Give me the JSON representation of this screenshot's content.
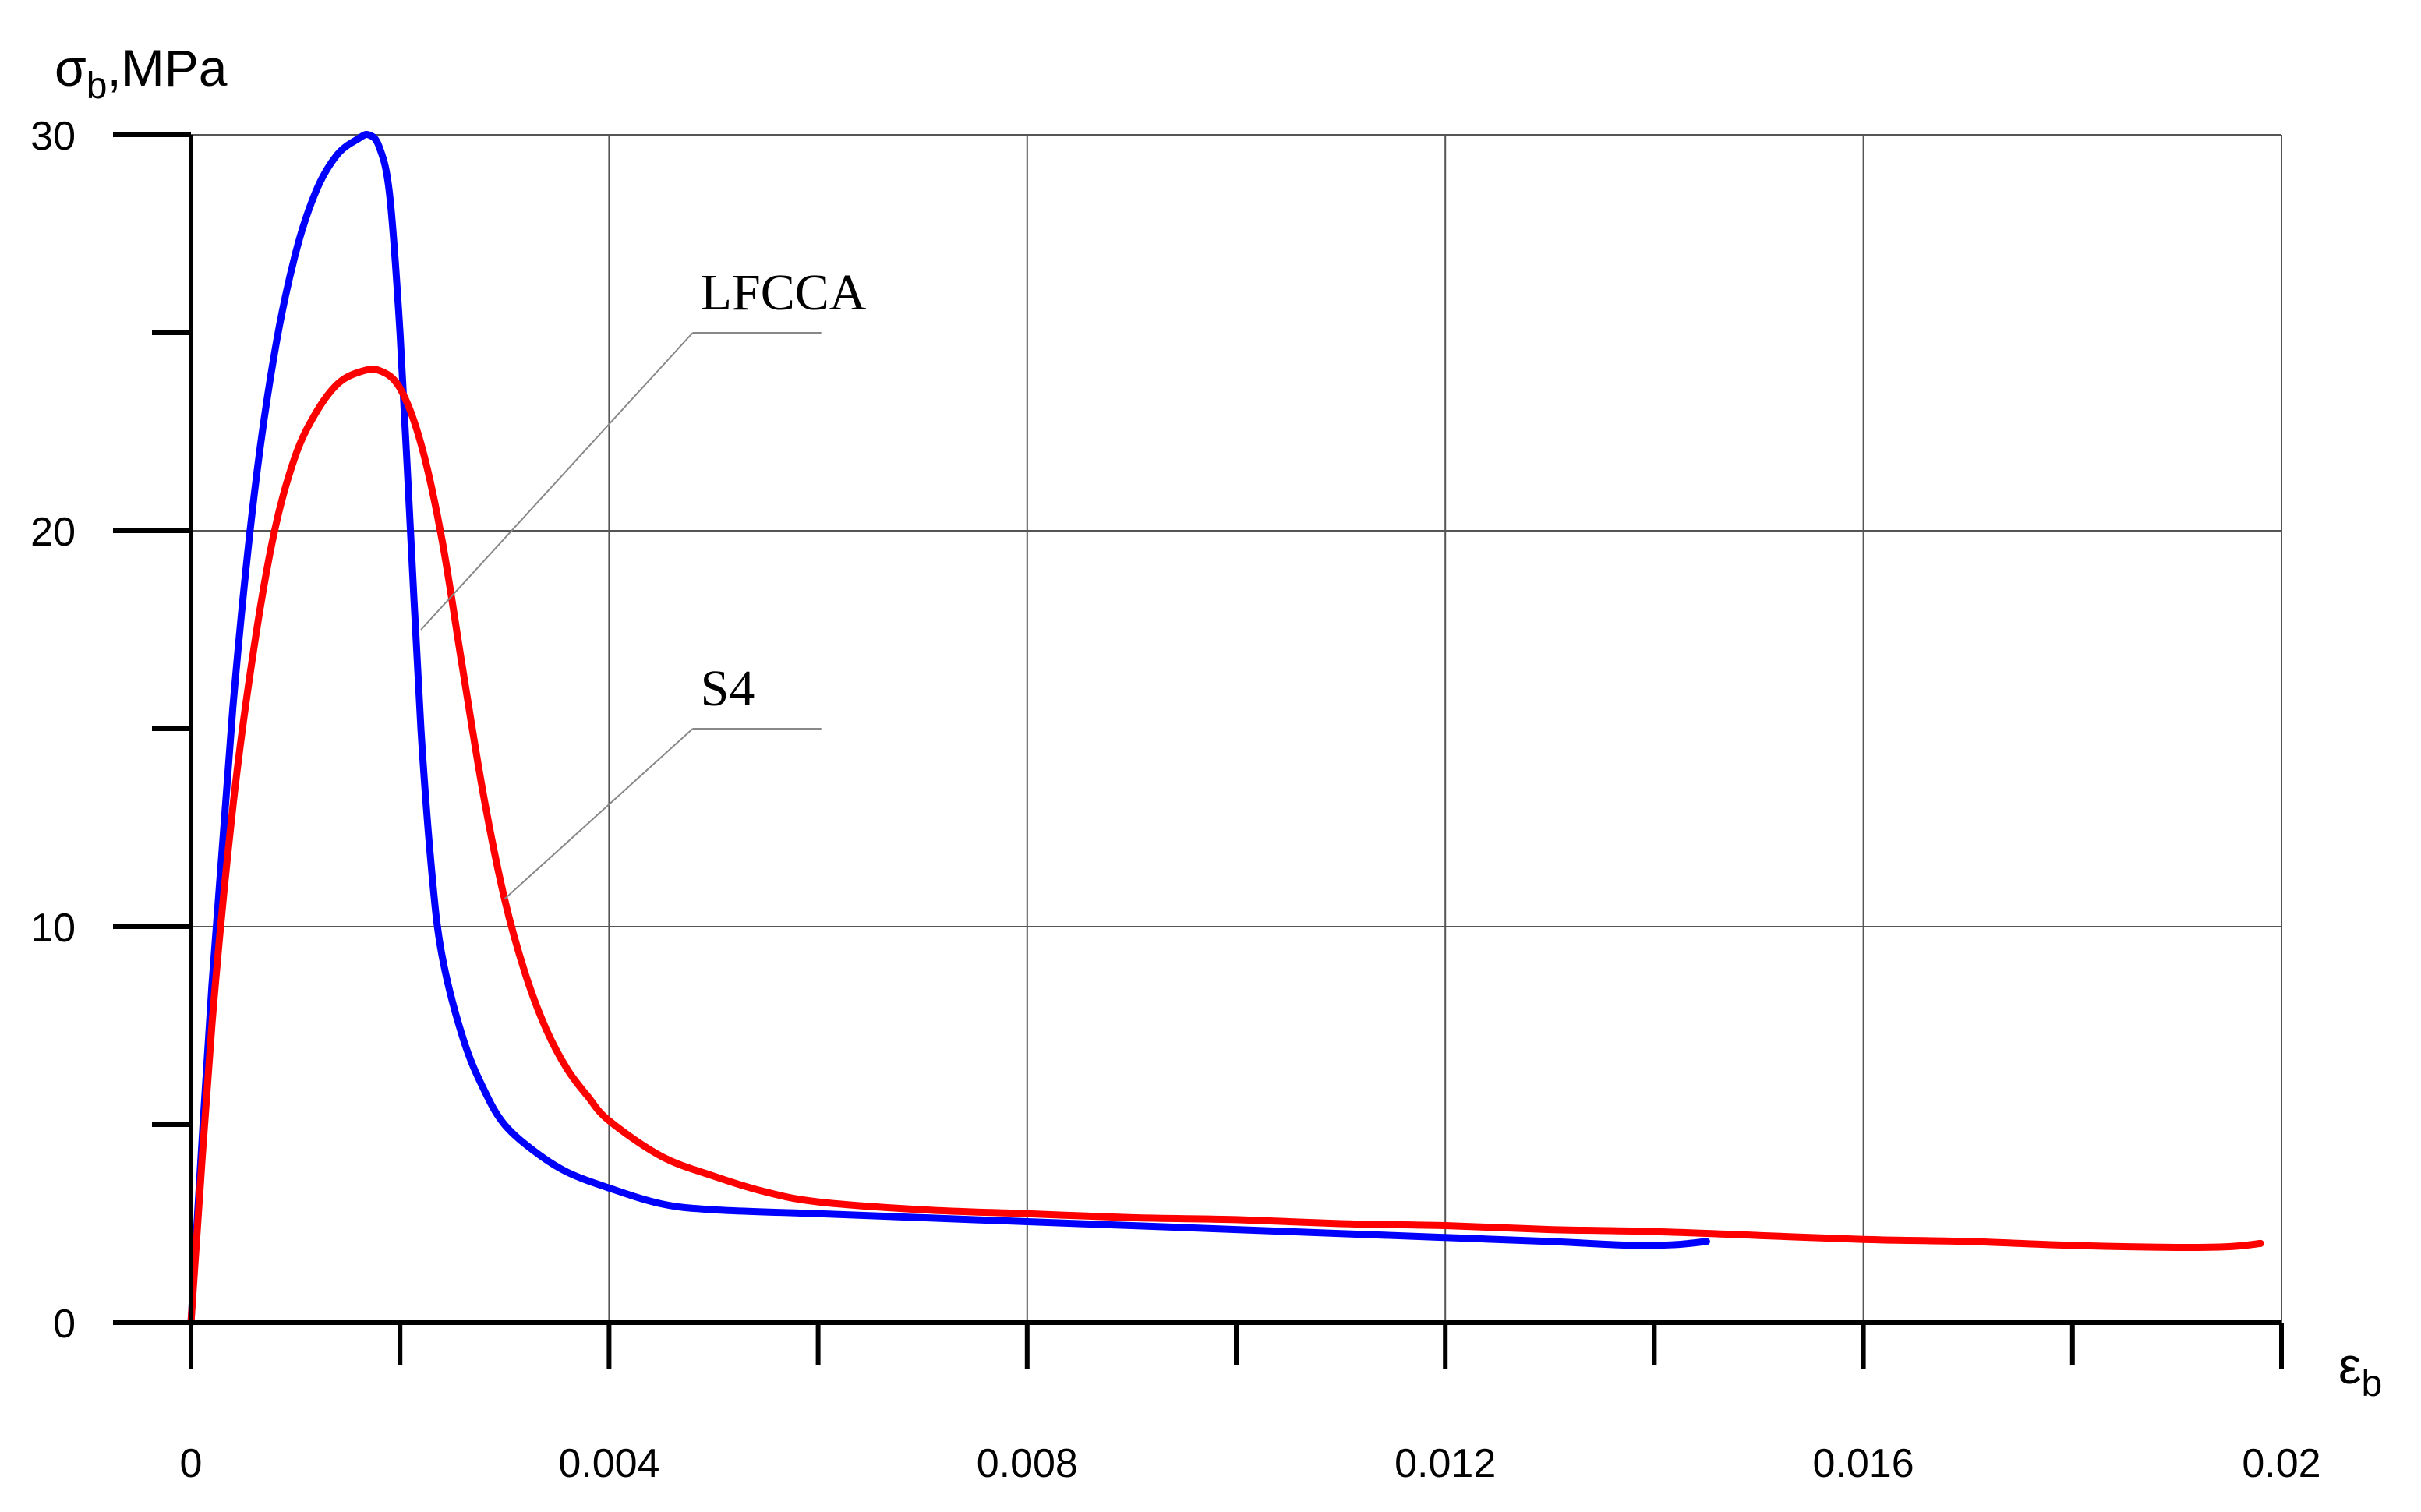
{
  "chart_data": {
    "type": "line",
    "xlabel": {
      "symbol": "ε",
      "sub": "b"
    },
    "ylabel": {
      "symbol": "σ",
      "sub": "b",
      "unit": ",MPa"
    },
    "xlim": [
      0,
      0.02
    ],
    "ylim": [
      0,
      30
    ],
    "x_ticks": [
      "0",
      "0.004",
      "0.008",
      "0.012",
      "0.016",
      "0.02"
    ],
    "x_tick_values": [
      0,
      0.004,
      0.008,
      0.012,
      0.016,
      0.02
    ],
    "x_minor_ticks": [
      0.002,
      0.006,
      0.01,
      0.014,
      0.018
    ],
    "y_ticks": [
      "0",
      "10",
      "20",
      "30"
    ],
    "y_tick_values": [
      0,
      10,
      20,
      30
    ],
    "y_minor_ticks": [
      5,
      15,
      25
    ],
    "grid": true,
    "series": [
      {
        "name": "LFCCA",
        "color": "#0000ff",
        "x": [
          0,
          0.0002,
          0.0004,
          0.0006,
          0.0008,
          0.001,
          0.0012,
          0.0014,
          0.0016,
          0.0017,
          0.0018,
          0.0019,
          0.002,
          0.0021,
          0.0022,
          0.0023,
          0.0024,
          0.0026,
          0.0028,
          0.003,
          0.0033,
          0.0036,
          0.004,
          0.0045,
          0.005,
          0.006,
          0.007,
          0.008,
          0.009,
          0.01,
          0.011,
          0.012,
          0.013,
          0.0138,
          0.0142,
          0.0145
        ],
        "y": [
          0,
          8.5,
          15.5,
          20.8,
          24.5,
          27.0,
          28.6,
          29.5,
          29.9,
          30.0,
          29.7,
          28.5,
          25.0,
          20.0,
          15.0,
          11.5,
          9.3,
          7.2,
          5.9,
          5.0,
          4.3,
          3.8,
          3.4,
          3.0,
          2.85,
          2.75,
          2.65,
          2.55,
          2.45,
          2.35,
          2.25,
          2.15,
          2.05,
          1.95,
          1.97,
          2.05
        ]
      },
      {
        "name": "S4",
        "color": "#ff0000",
        "x": [
          0,
          0.0002,
          0.0004,
          0.0006,
          0.0008,
          0.001,
          0.0012,
          0.0014,
          0.0016,
          0.0018,
          0.002,
          0.0022,
          0.0024,
          0.0026,
          0.0028,
          0.003,
          0.0032,
          0.0034,
          0.0036,
          0.0038,
          0.004,
          0.0045,
          0.005,
          0.0055,
          0.006,
          0.007,
          0.008,
          0.009,
          0.01,
          0.011,
          0.012,
          0.013,
          0.014,
          0.015,
          0.016,
          0.017,
          0.018,
          0.019,
          0.0195,
          0.0198
        ],
        "y": [
          0,
          7.5,
          13.0,
          17.0,
          20.0,
          21.9,
          23.0,
          23.7,
          24.0,
          24.05,
          23.6,
          22.2,
          19.8,
          16.5,
          13.3,
          10.7,
          8.8,
          7.4,
          6.4,
          5.7,
          5.1,
          4.2,
          3.7,
          3.3,
          3.05,
          2.85,
          2.75,
          2.65,
          2.6,
          2.5,
          2.45,
          2.35,
          2.3,
          2.2,
          2.1,
          2.05,
          1.95,
          1.9,
          1.92,
          2.0
        ]
      }
    ],
    "annotations": [
      {
        "text": "LFCCA",
        "series": "LFCCA",
        "label_x": 0.0048,
        "label_y": 25.0,
        "point_x": 0.0022,
        "point_y": 17.5
      },
      {
        "text": "S4",
        "series": "S4",
        "label_x": 0.0048,
        "label_y": 15.0,
        "point_x": 0.003,
        "point_y": 10.7
      }
    ]
  }
}
